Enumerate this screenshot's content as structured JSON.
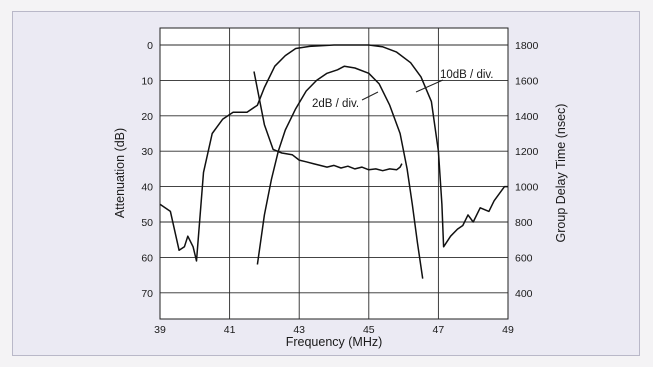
{
  "chart_data": {
    "type": "line",
    "title": "",
    "xlabel": "Frequency (MHz)",
    "ylabel_left": "Attenuation (dB)",
    "ylabel_right": "Group Delay Time (nsec)",
    "xlim": [
      39,
      49
    ],
    "ylim_left": [
      0,
      72
    ],
    "ylim_right": [
      1800,
      360
    ],
    "x_ticks": [
      "39",
      "41",
      "43",
      "45",
      "47",
      "49"
    ],
    "y_left_ticks": [
      "0",
      "10",
      "20",
      "30",
      "40",
      "50",
      "60",
      "70"
    ],
    "y_right_ticks": [
      "1800",
      "1600",
      "1400",
      "1200",
      "1000",
      "800",
      "600",
      "400"
    ],
    "grid": true,
    "annotations": [
      "10dB / div.",
      "2dB / div."
    ],
    "series": [
      {
        "axis": "left",
        "points": [
          [
            39.0,
            45
          ],
          [
            39.3,
            47
          ],
          [
            39.55,
            58
          ],
          [
            39.7,
            57
          ],
          [
            39.8,
            54
          ],
          [
            39.95,
            57
          ],
          [
            40.05,
            61
          ],
          [
            40.25,
            36
          ],
          [
            40.5,
            25
          ],
          [
            40.8,
            21
          ],
          [
            41.1,
            19
          ],
          [
            41.5,
            19
          ],
          [
            41.8,
            17
          ],
          [
            42.0,
            12
          ],
          [
            42.3,
            6
          ],
          [
            42.6,
            3
          ],
          [
            42.9,
            1
          ],
          [
            43.3,
            0.4
          ],
          [
            44.0,
            0
          ],
          [
            45.0,
            0
          ],
          [
            45.4,
            0.5
          ],
          [
            45.8,
            2
          ],
          [
            46.2,
            5
          ],
          [
            46.5,
            9
          ],
          [
            46.8,
            16
          ],
          [
            47.0,
            30
          ],
          [
            47.1,
            45
          ],
          [
            47.15,
            57
          ],
          [
            47.35,
            54
          ],
          [
            47.55,
            52
          ],
          [
            47.7,
            51
          ],
          [
            47.85,
            48
          ],
          [
            48.0,
            50
          ],
          [
            48.2,
            46
          ],
          [
            48.45,
            47
          ],
          [
            48.6,
            44
          ],
          [
            48.75,
            42
          ],
          [
            48.9,
            40
          ],
          [
            49.0,
            40
          ]
        ]
      },
      {
        "axis": "left",
        "points": [
          [
            41.8,
            62
          ],
          [
            41.9,
            55
          ],
          [
            42.0,
            48
          ],
          [
            42.2,
            38
          ],
          [
            42.4,
            30
          ],
          [
            42.6,
            24
          ],
          [
            42.9,
            18
          ],
          [
            43.2,
            13
          ],
          [
            43.5,
            10
          ],
          [
            43.8,
            8
          ],
          [
            44.1,
            7
          ],
          [
            44.3,
            6
          ],
          [
            44.6,
            6.5
          ],
          [
            45.0,
            8
          ],
          [
            45.3,
            11
          ],
          [
            45.6,
            17
          ],
          [
            45.9,
            25
          ],
          [
            46.1,
            35
          ],
          [
            46.25,
            45
          ],
          [
            46.4,
            56
          ],
          [
            46.55,
            66
          ]
        ]
      },
      {
        "axis": "right",
        "points": [
          [
            41.7,
            1650
          ],
          [
            41.85,
            1500
          ],
          [
            42.0,
            1350
          ],
          [
            42.25,
            1210
          ],
          [
            42.5,
            1190
          ],
          [
            42.8,
            1180
          ],
          [
            43.0,
            1150
          ],
          [
            43.2,
            1140
          ],
          [
            43.4,
            1130
          ],
          [
            43.6,
            1120
          ],
          [
            43.8,
            1110
          ],
          [
            44.0,
            1120
          ],
          [
            44.2,
            1105
          ],
          [
            44.4,
            1115
          ],
          [
            44.6,
            1100
          ],
          [
            44.8,
            1110
          ],
          [
            45.0,
            1095
          ],
          [
            45.2,
            1100
          ],
          [
            45.4,
            1090
          ],
          [
            45.6,
            1100
          ],
          [
            45.8,
            1095
          ],
          [
            45.9,
            1110
          ],
          [
            45.95,
            1130
          ]
        ]
      }
    ]
  }
}
